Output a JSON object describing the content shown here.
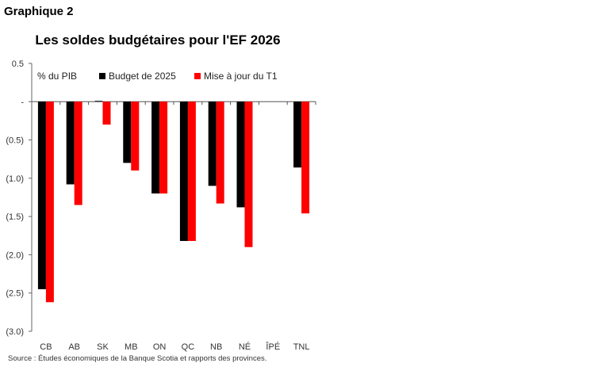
{
  "graph_label": "Graphique 2",
  "source": "Source : Études économiques de la Banque Scotia et rapports des provinces.",
  "chart_data": {
    "type": "bar",
    "title": "Les soldes budgétaires pour l'EF 2026",
    "ylabel": "% du PIB",
    "categories": [
      "CB",
      "AB",
      "SK",
      "MB",
      "ON",
      "QC",
      "NB",
      "NÉ",
      "ÎPÉ",
      "TNL"
    ],
    "series": [
      {
        "name": "Budget de 2025",
        "color": "#000000",
        "values": [
          -2.45,
          -1.08,
          0.01,
          -0.8,
          -1.2,
          -1.82,
          -1.1,
          -1.38,
          null,
          -0.86
        ]
      },
      {
        "name": "Mise à jour du T1",
        "color": "#ff0000",
        "values": [
          -2.62,
          -1.35,
          -0.3,
          -0.9,
          -1.2,
          -1.82,
          -1.33,
          -1.9,
          null,
          -1.46
        ]
      }
    ],
    "ylim": [
      -3.0,
      0.5
    ],
    "yticks": [
      0.5,
      0,
      -0.5,
      -1.0,
      -1.5,
      -2.0,
      -2.5,
      -3.0
    ],
    "ytick_labels": [
      "0.5",
      "-",
      "(0.5)",
      "(1.0)",
      "(1.5)",
      "(2.0)",
      "(2.5)",
      "(3.0)"
    ],
    "legend_position": "top",
    "grid": false
  }
}
